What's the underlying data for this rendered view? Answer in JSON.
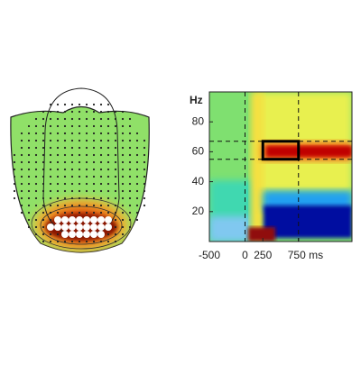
{
  "chart_data": {
    "type": "heatmap",
    "ylabel": "Hz",
    "xlim": [
      -500,
      1500
    ],
    "ylim": [
      0,
      100
    ],
    "xticks": [
      -500,
      0,
      250,
      {
        "value": 750,
        "label": "750 ms"
      }
    ],
    "yticks": [
      20,
      40,
      60,
      80
    ],
    "roi": {
      "x": [
        250,
        750
      ],
      "y": [
        55,
        67
      ]
    }
  }
}
